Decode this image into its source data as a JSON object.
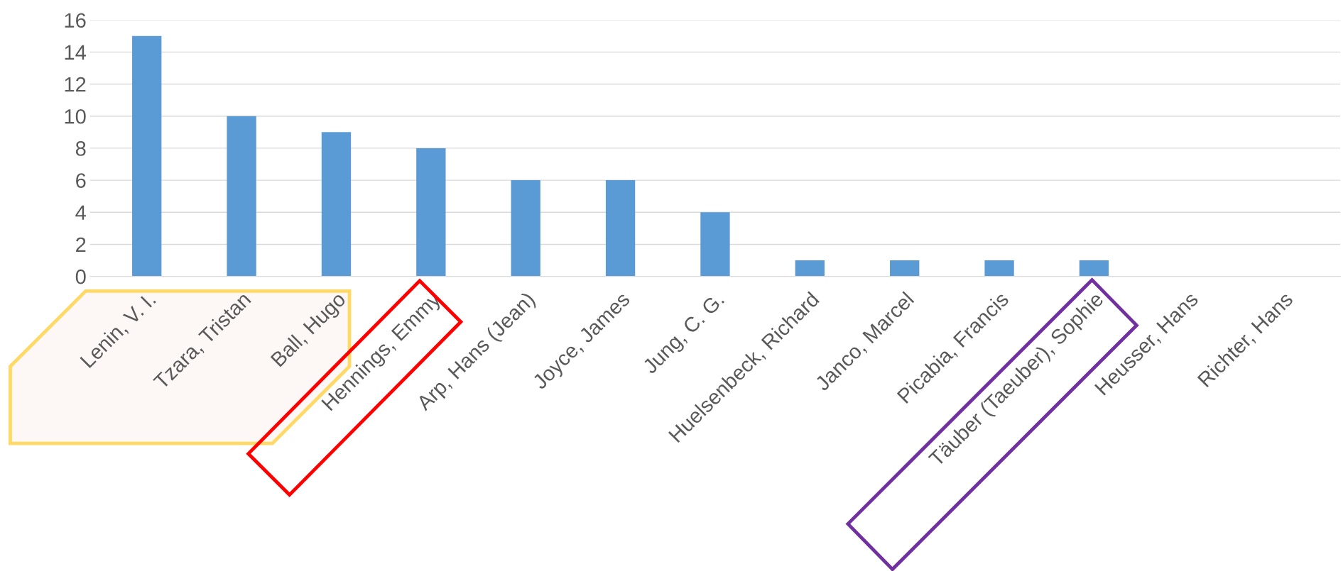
{
  "chart_data": {
    "type": "bar",
    "categories": [
      "Lenin, V. I.",
      "Tzara, Tristan",
      "Ball, Hugo",
      "Hennings, Emmy",
      "Arp, Hans (Jean)",
      "Joyce, James",
      "Jung, C. G.",
      "Huelsenbeck, Richard",
      "Janco, Marcel",
      "Picabia, Francis",
      "Täuber (Taeuber), Sophie",
      "Heusser, Hans",
      "Richter, Hans"
    ],
    "values": [
      15,
      10,
      9,
      8,
      6,
      6,
      4,
      1,
      1,
      1,
      1,
      0,
      0
    ],
    "color": "#5b9bd5",
    "ylim": [
      0,
      16
    ],
    "yticks": [
      0,
      2,
      4,
      6,
      8,
      10,
      12,
      14,
      16
    ],
    "grid": "y"
  }
}
